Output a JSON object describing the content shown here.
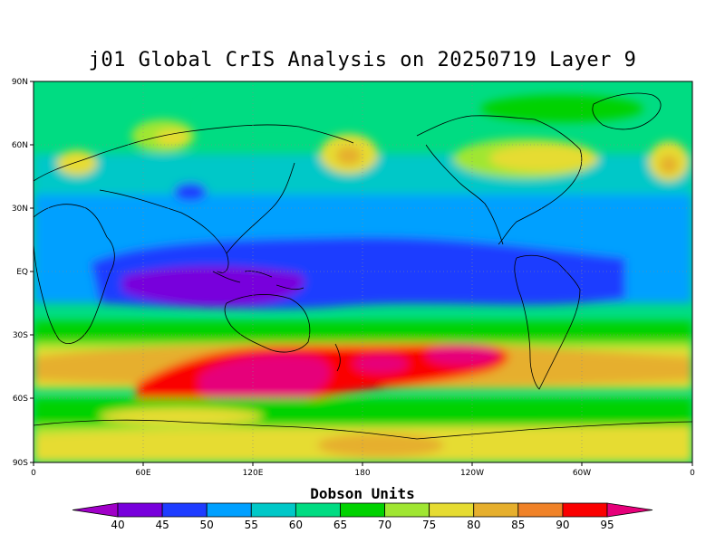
{
  "title": "j01 Global CrIS Analysis on 20250719 Layer 9",
  "lat_ticks": [
    "90N",
    "60N",
    "30N",
    "EQ",
    "30S",
    "60S",
    "90S"
  ],
  "lon_ticks": [
    "0",
    "60E",
    "120E",
    "180",
    "120W",
    "60W",
    "0"
  ],
  "colorbar": {
    "title": "Dobson Units",
    "labels": [
      "40",
      "45",
      "50",
      "55",
      "60",
      "65",
      "70",
      "75",
      "80",
      "85",
      "90",
      "95"
    ],
    "colors": [
      "#a000c8",
      "#7800dc",
      "#1e3cff",
      "#00a0ff",
      "#00c8c8",
      "#00dc82",
      "#00d200",
      "#a0e632",
      "#e6dc32",
      "#e6af2d",
      "#f08228",
      "#fa0000",
      "#e6007a"
    ]
  },
  "map": {
    "background_color": "#00c8c8"
  }
}
